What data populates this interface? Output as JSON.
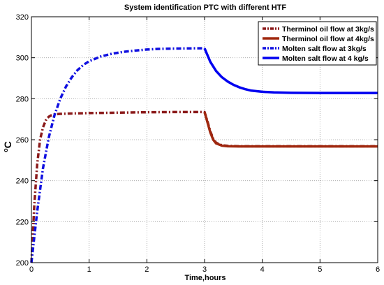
{
  "chart_data": {
    "type": "line",
    "title": "System identification  PTC with different HTF",
    "xlabel": "Time,hours",
    "ylabel": "oC",
    "ylabel_main": "o",
    "ylabel_unit": "C",
    "xlim": [
      0,
      6
    ],
    "ylim": [
      200,
      320
    ],
    "xticks": [
      0,
      1,
      2,
      3,
      4,
      5,
      6
    ],
    "yticks": [
      200,
      220,
      240,
      260,
      280,
      300,
      320
    ],
    "grid": true,
    "legend_position": "top-right",
    "series": [
      {
        "name": "Therminol oil flow at 3kg/s",
        "color": "#8B1A1A",
        "dash": "dashdot",
        "x": [
          0,
          0.05,
          0.1,
          0.15,
          0.2,
          0.25,
          0.3,
          0.35,
          0.4,
          0.5,
          0.7,
          1.0,
          1.5,
          2.0,
          2.5,
          3.0,
          3.05,
          3.1,
          3.15,
          3.2,
          3.3,
          3.4,
          3.6,
          4.0,
          5.0,
          6.0
        ],
        "y": [
          200,
          228,
          248,
          260,
          266,
          269.5,
          271.2,
          272,
          272.4,
          272.6,
          272.8,
          273,
          273.2,
          273.4,
          273.5,
          273.5,
          269,
          264,
          260.5,
          258.5,
          257.3,
          257,
          256.8,
          256.8,
          256.8,
          256.8
        ]
      },
      {
        "name": "Therminol oil flow at 4kg/s",
        "color": "#A0280F",
        "dash": "solid",
        "x": [
          3.0,
          3.05,
          3.1,
          3.15,
          3.2,
          3.3,
          3.4,
          3.6,
          4.0,
          5.0,
          6.0
        ],
        "y": [
          273.5,
          268.5,
          263.5,
          260,
          258.2,
          257.1,
          256.8,
          256.7,
          256.7,
          256.7,
          256.7
        ]
      },
      {
        "name": "Molten salt flow at 3kg/s",
        "color": "#1010E0",
        "dash": "dashdot",
        "x": [
          0,
          0.1,
          0.2,
          0.3,
          0.4,
          0.5,
          0.6,
          0.7,
          0.8,
          0.9,
          1.0,
          1.2,
          1.4,
          1.6,
          1.8,
          2.0,
          2.2,
          2.5,
          2.8,
          3.0
        ],
        "y": [
          200,
          225,
          246,
          261,
          272,
          280,
          286,
          290.5,
          294,
          296.5,
          298.3,
          300.6,
          302,
          302.9,
          303.5,
          304,
          304.3,
          304.5,
          304.6,
          304.6
        ]
      },
      {
        "name": "Molten salt flow at 4 kg/s",
        "color": "#0000F0",
        "dash": "solid",
        "x": [
          3.0,
          3.1,
          3.2,
          3.3,
          3.4,
          3.5,
          3.6,
          3.7,
          3.8,
          4.0,
          4.2,
          4.5,
          5.0,
          6.0
        ],
        "y": [
          304.6,
          298,
          293.5,
          290.5,
          288.4,
          286.8,
          285.6,
          284.7,
          284,
          283.4,
          283.1,
          282.9,
          282.8,
          282.8
        ]
      }
    ]
  }
}
